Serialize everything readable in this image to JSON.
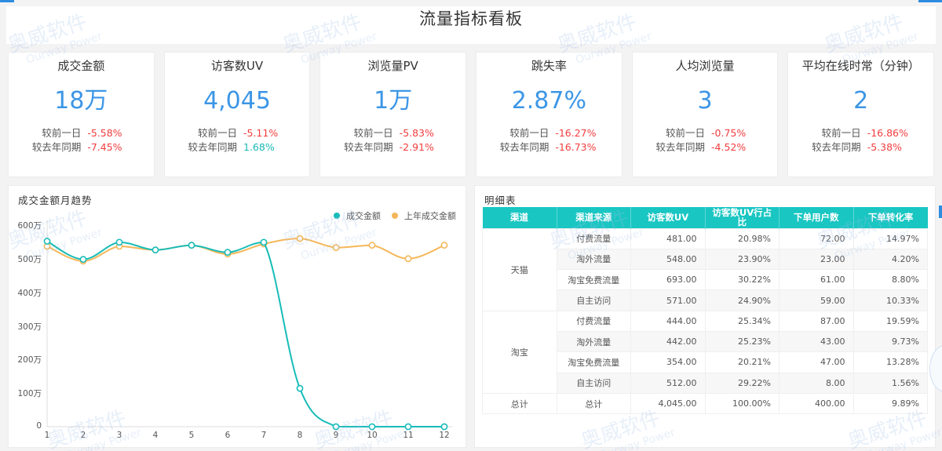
{
  "header": {
    "title": "流量指标看板"
  },
  "watermark": {
    "cn": "奥威软件",
    "en": "Ourway Power"
  },
  "kpis": [
    {
      "title": "成交金额",
      "value": "18万",
      "day_label": "较前一日",
      "day_change": "-5.58%",
      "day_trend": "neg",
      "year_label": "较去年同期",
      "year_change": "-7.45%",
      "year_trend": "neg"
    },
    {
      "title": "访客数UV",
      "value": "4,045",
      "day_label": "较前一日",
      "day_change": "-5.11%",
      "day_trend": "neg",
      "year_label": "较去年同期",
      "year_change": "1.68%",
      "year_trend": "pos"
    },
    {
      "title": "浏览量PV",
      "value": "1万",
      "day_label": "较前一日",
      "day_change": "-5.83%",
      "day_trend": "neg",
      "year_label": "较去年同期",
      "year_change": "-2.91%",
      "year_trend": "neg"
    },
    {
      "title": "跳失率",
      "value": "2.87%",
      "day_label": "较前一日",
      "day_change": "-16.27%",
      "day_trend": "neg",
      "year_label": "较去年同期",
      "year_change": "-16.73%",
      "year_trend": "neg"
    },
    {
      "title": "人均浏览量",
      "value": "3",
      "day_label": "较前一日",
      "day_change": "-0.75%",
      "day_trend": "neg",
      "year_label": "较去年同期",
      "year_change": "-4.52%",
      "year_trend": "neg"
    },
    {
      "title": "平均在线时常（分钟）",
      "value": "2",
      "day_label": "较前一日",
      "day_change": "-16.86%",
      "day_trend": "neg",
      "year_label": "较去年同期",
      "year_change": "-5.38%",
      "year_trend": "neg"
    }
  ],
  "colors": {
    "accent": "#3c96e6",
    "negative": "#f23d3d",
    "positive": "#19b9b6",
    "series_current": "#17bcb8",
    "series_last_year": "#f5b75a",
    "table_header": "#19c6c2"
  },
  "chart_panel": {
    "title": "成交金额月趋势",
    "legend": [
      {
        "label": "成交金额",
        "color": "#17bcb8"
      },
      {
        "label": "上年成交金额",
        "color": "#f5b75a"
      }
    ]
  },
  "chart_data": {
    "type": "line",
    "title": "成交金额月趋势",
    "xlabel": "",
    "ylabel": "",
    "categories": [
      "1",
      "2",
      "3",
      "4",
      "5",
      "6",
      "7",
      "8",
      "9",
      "10",
      "11",
      "12"
    ],
    "yticks": [
      "0",
      "100万",
      "200万",
      "300万",
      "400万",
      "500万",
      "600万"
    ],
    "ylim": [
      0,
      600
    ],
    "unit": "万",
    "grid": false,
    "legend_position": "top-right",
    "series": [
      {
        "name": "成交金额",
        "color": "#17bcb8",
        "values": [
          552,
          498,
          549,
          526,
          540,
          519,
          549,
          114,
          0,
          0,
          0,
          0
        ]
      },
      {
        "name": "上年成交金额",
        "color": "#f5b75a",
        "values": [
          537,
          493,
          537,
          526,
          540,
          514,
          544,
          560,
          533,
          540,
          500,
          540
        ]
      }
    ]
  },
  "table_panel": {
    "title": "明细表",
    "columns": [
      "渠道",
      "渠道来源",
      "访客数UV",
      "访客数UV行占比",
      "下单用户数",
      "下单转化率"
    ],
    "groups": [
      {
        "channel": "天猫",
        "rows": [
          {
            "source": "付费流量",
            "uv": "481.00",
            "uv_pct": "20.98%",
            "buyers": "72.00",
            "conv": "14.97%"
          },
          {
            "source": "淘外流量",
            "uv": "548.00",
            "uv_pct": "23.90%",
            "buyers": "23.00",
            "conv": "4.20%"
          },
          {
            "source": "淘宝免费流量",
            "uv": "693.00",
            "uv_pct": "30.22%",
            "buyers": "61.00",
            "conv": "8.80%"
          },
          {
            "source": "自主访问",
            "uv": "571.00",
            "uv_pct": "24.90%",
            "buyers": "59.00",
            "conv": "10.33%"
          }
        ]
      },
      {
        "channel": "淘宝",
        "rows": [
          {
            "source": "付费流量",
            "uv": "444.00",
            "uv_pct": "25.34%",
            "buyers": "87.00",
            "conv": "19.59%"
          },
          {
            "source": "淘外流量",
            "uv": "442.00",
            "uv_pct": "25.23%",
            "buyers": "43.00",
            "conv": "9.73%"
          },
          {
            "source": "淘宝免费流量",
            "uv": "354.00",
            "uv_pct": "20.21%",
            "buyers": "47.00",
            "conv": "13.28%"
          },
          {
            "source": "自主访问",
            "uv": "512.00",
            "uv_pct": "29.22%",
            "buyers": "8.00",
            "conv": "1.56%"
          }
        ]
      }
    ],
    "total": {
      "channel": "总计",
      "source": "总计",
      "uv": "4,045.00",
      "uv_pct": "100.00%",
      "buyers": "400.00",
      "conv": "9.89%"
    }
  }
}
